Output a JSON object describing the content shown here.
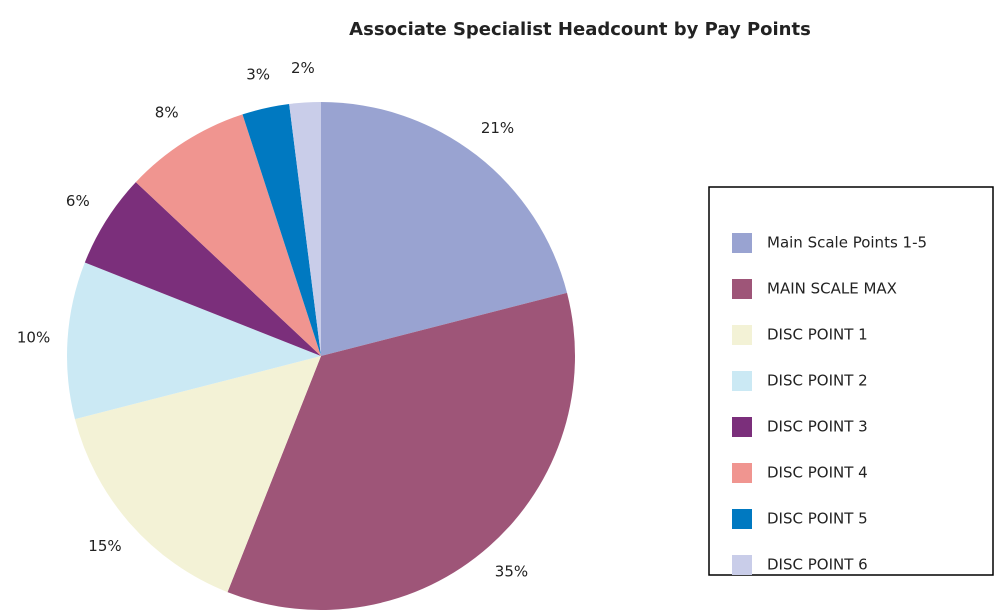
{
  "chart_data": {
    "type": "pie",
    "title": "Associate Specialist Headcount by Pay Points",
    "categories": [
      "Main Scale Points 1-5",
      "MAIN SCALE MAX",
      "DISC POINT 1",
      "DISC POINT 2",
      "DISC POINT 3",
      "DISC POINT 4",
      "DISC POINT 5",
      "DISC POINT 6"
    ],
    "values": [
      21,
      35,
      15,
      10,
      6,
      8,
      3,
      2
    ],
    "value_labels": [
      "21%",
      "35%",
      "15%",
      "10%",
      "6%",
      "8%",
      "3%",
      "2%"
    ],
    "colors": [
      "#99a3d1",
      "#9e5578",
      "#f3f2d6",
      "#cbe9f4",
      "#7b2f7b",
      "#f09590",
      "#0079c1",
      "#c9cde9"
    ],
    "legend": "right"
  }
}
